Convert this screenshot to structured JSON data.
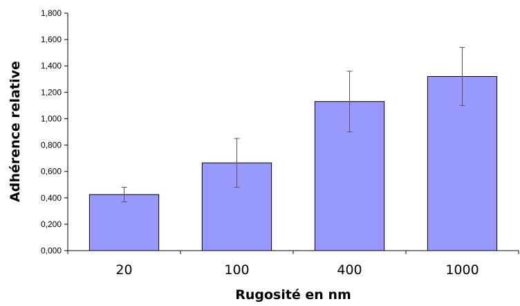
{
  "chart_data": {
    "type": "bar",
    "categories": [
      "20",
      "100",
      "400",
      "1000"
    ],
    "values": [
      0.425,
      0.665,
      1.13,
      1.32
    ],
    "error_low": [
      0.37,
      0.48,
      0.9,
      1.1
    ],
    "error_high": [
      0.48,
      0.85,
      1.36,
      1.54
    ],
    "xlabel": "Rugosité en nm",
    "ylabel": "Adhérence relative",
    "ylim": [
      0,
      1.8
    ],
    "yticks": [
      "0,000",
      "0,200",
      "0,400",
      "0,600",
      "0,800",
      "1,000",
      "1,200",
      "1,400",
      "1,600",
      "1,800"
    ],
    "grid": false,
    "legend": "none",
    "bar_color": "#9999ff",
    "bar_edge_color": "#000000"
  }
}
